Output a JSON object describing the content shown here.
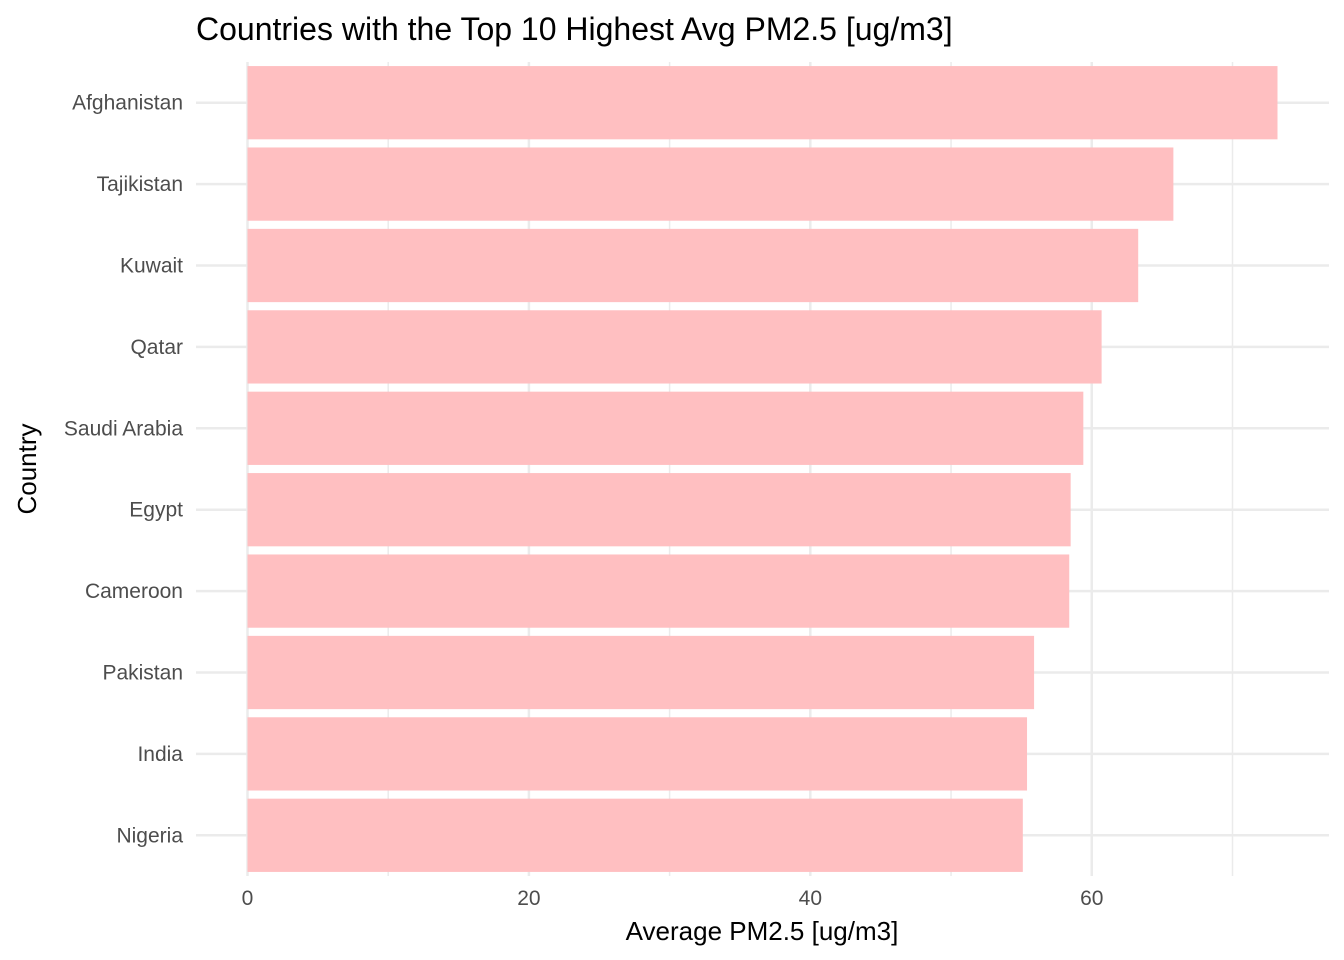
{
  "chart_data": {
    "type": "bar",
    "orientation": "horizontal",
    "title": "Countries with the Top 10 Highest Avg PM2.5 [ug/m3]",
    "xlabel": "Average PM2.5 [ug/m3]",
    "ylabel": "Country",
    "categories": [
      "Afghanistan",
      "Tajikistan",
      "Kuwait",
      "Qatar",
      "Saudi Arabia",
      "Egypt",
      "Cameroon",
      "Pakistan",
      "India",
      "Nigeria"
    ],
    "values": [
      73.2,
      65.8,
      63.3,
      60.7,
      59.4,
      58.5,
      58.4,
      55.9,
      55.4,
      55.1
    ],
    "xticks": [
      0,
      20,
      40,
      60
    ],
    "xlim": [
      -3.66,
      76.86
    ],
    "grid": true,
    "bar_color": "#ffbfc1",
    "grid_color": "#ebebeb"
  }
}
